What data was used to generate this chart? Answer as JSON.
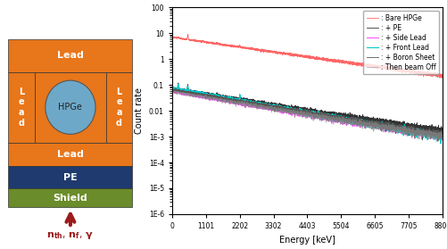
{
  "diagram": {
    "lead_color": "#E8761A",
    "pe_color": "#1E3A6E",
    "shield_color": "#6B8C2A",
    "hpge_color": "#6EA8C8",
    "lead_label": "Lead",
    "pe_label": "PE",
    "shield_label": "Shield",
    "hpge_label": "HPGe"
  },
  "plot": {
    "xlim": [
      0,
      8806
    ],
    "xticks": [
      0,
      1101,
      2202,
      3302,
      4403,
      5504,
      6605,
      7705,
      8806
    ],
    "xlabel": "Energy [keV]",
    "ylabel": "Count rate",
    "legend_entries": [
      ": Bare HPGe",
      ": + PE",
      ": + Side Lead",
      ": + Front Lead",
      ": + Boron Sheet",
      ": Then beam Off"
    ],
    "line_colors": [
      "#FF6666",
      "#333333",
      "#FF44FF",
      "#00CCCC",
      "#555555",
      "#888888"
    ],
    "ytick_labels": [
      "100",
      "10",
      "1",
      "0.1",
      "0.01",
      "1E-3",
      "1E-4",
      "1E-5",
      "1E-6"
    ],
    "ytick_vals": [
      100,
      10,
      1,
      0.1,
      0.01,
      0.001,
      0.0001,
      1e-05,
      1e-06
    ]
  }
}
